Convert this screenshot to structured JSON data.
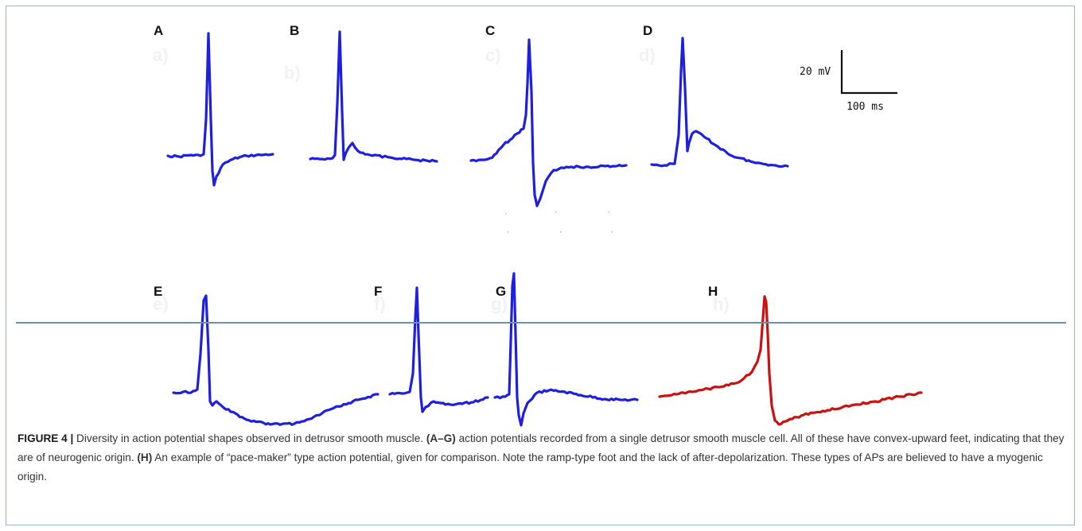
{
  "figure": {
    "panel_labels": [
      "A",
      "B",
      "C",
      "D",
      "E",
      "F",
      "G",
      "H"
    ],
    "faint_labels": [
      "a)",
      "b)",
      "c)",
      "d)",
      "e)",
      "f)",
      "g)",
      "h)"
    ],
    "scale_bar": {
      "voltage_label": "20 mV",
      "time_label": "100 ms"
    },
    "colors": {
      "neurogenic": "#1f1fe0",
      "pacemaker": "#cc1111",
      "text": "#111111"
    }
  },
  "chart_data": {
    "type": "line",
    "scale_bar": {
      "voltage_mV": 20,
      "time_ms": 100
    },
    "series": [
      {
        "panel": "A",
        "color": "#1f1fe0",
        "shape": "sharp spike, brief undershoot, recovery to baseline"
      },
      {
        "panel": "B",
        "color": "#1f1fe0",
        "shape": "sharp spike, small after-depolarization hump, slow decay"
      },
      {
        "panel": "C",
        "color": "#1f1fe0",
        "shape": "convex-upward foot, spike, deep undershoot"
      },
      {
        "panel": "D",
        "color": "#1f1fe0",
        "shape": "spike with pronounced after-depolarization, slow decay"
      },
      {
        "panel": "E",
        "color": "#1f1fe0",
        "shape": "spike followed by long after-hyperpolarization"
      },
      {
        "panel": "F",
        "color": "#1f1fe0",
        "shape": "sharp spike, small undershoot"
      },
      {
        "panel": "G",
        "color": "#1f1fe0",
        "shape": "tall spike, undershoot, plateau"
      },
      {
        "panel": "H",
        "color": "#cc1111",
        "shape": "ramp-type foot, spike, no after-depolarization"
      }
    ]
  },
  "caption": {
    "figure_number": "FIGURE 4 |",
    "intro": " Diversity in action potential shapes observed in detrusor smooth muscle. ",
    "ref_ag": "(A–G)",
    "text_ag": " action potentials recorded from a single detrusor smooth muscle cell. All of these have convex-upward feet, indicating that they are of neurogenic origin. ",
    "ref_h": "(H)",
    "text_h": " An example of “pace-maker” type action potential, given for comparison. Note the ramp-type foot and the lack of after-depolarization. These types of APs are believed to have a myogenic origin."
  }
}
